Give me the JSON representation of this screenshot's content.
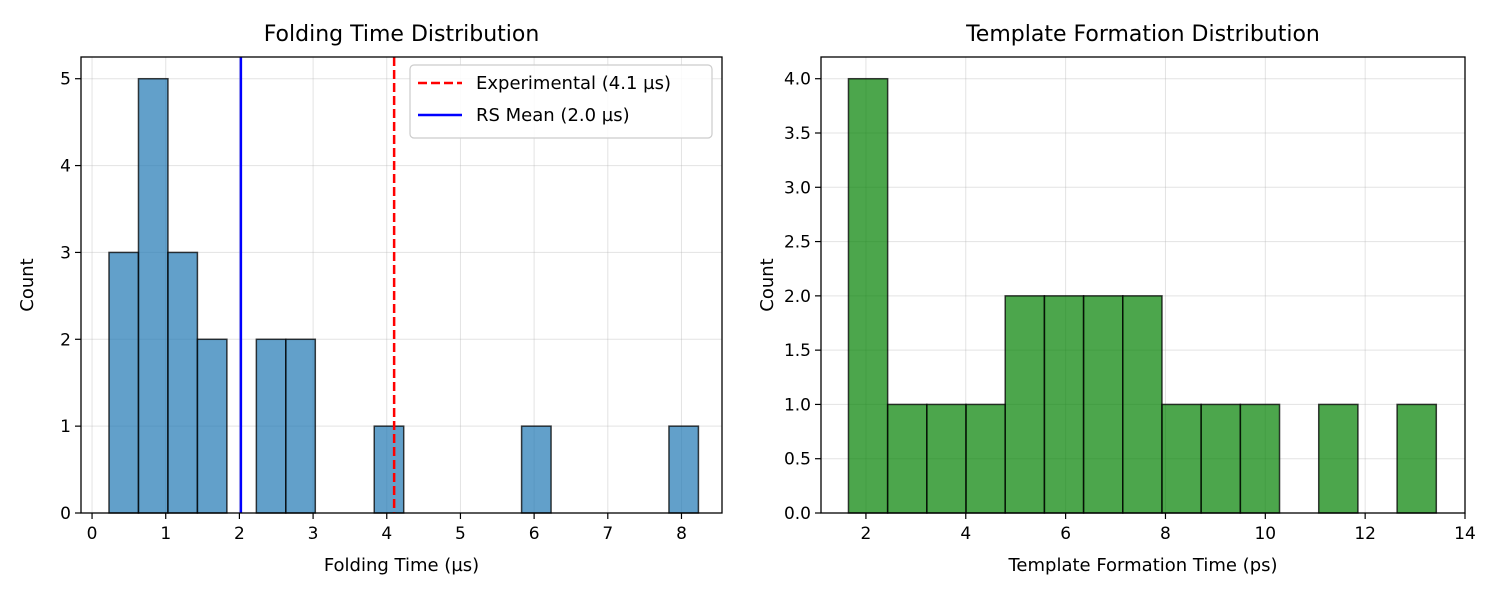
{
  "chart_data": [
    {
      "type": "bar",
      "title": "Folding Time Distribution",
      "xlabel": "Folding Time (µs)",
      "ylabel": "Count",
      "xlim": [
        -0.15,
        8.55
      ],
      "ylim": [
        0,
        5.25
      ],
      "xticks": [
        0,
        1,
        2,
        3,
        4,
        5,
        6,
        7,
        8
      ],
      "yticks": [
        0,
        1,
        2,
        3,
        4,
        5
      ],
      "grid": true,
      "bar_color": "#1f77b4",
      "bin_width": 0.4,
      "bins": [
        {
          "start": 0.23,
          "count": 3
        },
        {
          "start": 0.63,
          "count": 5
        },
        {
          "start": 1.03,
          "count": 3
        },
        {
          "start": 1.43,
          "count": 2
        },
        {
          "start": 2.23,
          "count": 2
        },
        {
          "start": 2.63,
          "count": 2
        },
        {
          "start": 3.83,
          "count": 1
        },
        {
          "start": 5.83,
          "count": 1
        },
        {
          "start": 7.83,
          "count": 1
        }
      ],
      "vlines": [
        {
          "x": 4.1,
          "label": "Experimental (4.1 µs)",
          "color": "#ff0000",
          "style": "dashed"
        },
        {
          "x": 2.02,
          "label": "RS Mean (2.0 µs)",
          "color": "#0000ff",
          "style": "solid"
        }
      ],
      "legend_position": "top-right"
    },
    {
      "type": "bar",
      "title": "Template Formation Distribution",
      "xlabel": "Template Formation Time (ps)",
      "ylabel": "Count",
      "xlim": [
        1.1,
        14.0
      ],
      "ylim": [
        0,
        4.2
      ],
      "xticks": [
        2,
        4,
        6,
        8,
        10,
        12,
        14
      ],
      "yticks": [
        0.0,
        0.5,
        1.0,
        1.5,
        2.0,
        2.5,
        3.0,
        3.5,
        4.0
      ],
      "grid": true,
      "bar_color": "#008000",
      "bin_width": 0.785,
      "bins": [
        {
          "start": 1.65,
          "count": 4
        },
        {
          "start": 2.435,
          "count": 1
        },
        {
          "start": 3.22,
          "count": 1
        },
        {
          "start": 4.005,
          "count": 1
        },
        {
          "start": 4.79,
          "count": 2
        },
        {
          "start": 5.575,
          "count": 2
        },
        {
          "start": 6.36,
          "count": 2
        },
        {
          "start": 7.145,
          "count": 2
        },
        {
          "start": 7.93,
          "count": 1
        },
        {
          "start": 8.715,
          "count": 1
        },
        {
          "start": 9.5,
          "count": 1
        },
        {
          "start": 11.07,
          "count": 1
        },
        {
          "start": 12.64,
          "count": 1
        }
      ]
    }
  ]
}
